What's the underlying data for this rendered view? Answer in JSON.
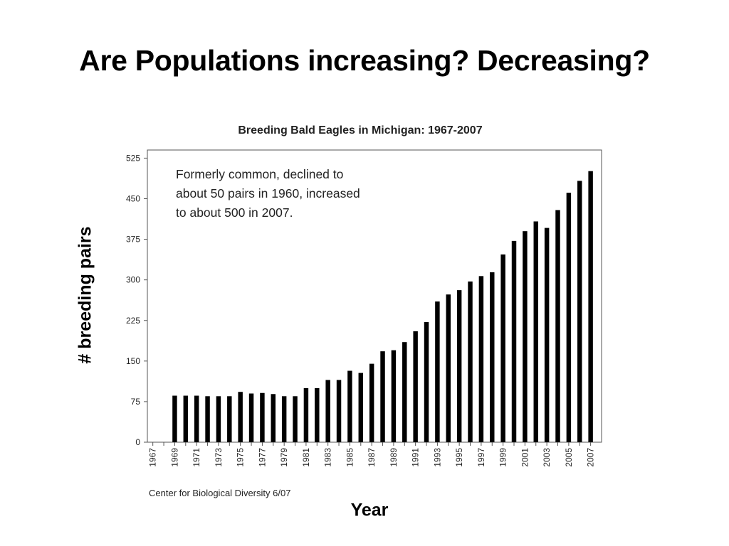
{
  "slide": {
    "title": "Are Populations increasing? Decreasing?",
    "y_label": "# breeding pairs",
    "x_label": "Year"
  },
  "chart_data": {
    "type": "bar",
    "title": "Breeding Bald Eagles in Michigan: 1967-2007",
    "annotation": "Formerly common, declined to\nabout 50 pairs in 1960, increased\nto about 500 in 2007.",
    "source": "Center for Biological Diversity 6/07",
    "xlabel": "Year",
    "ylabel": "# breeding pairs",
    "ylim": [
      0,
      540
    ],
    "yticks": [
      0,
      75,
      150,
      225,
      300,
      375,
      450,
      525
    ],
    "categories": [
      "1967",
      "1968",
      "1969",
      "1970",
      "1971",
      "1972",
      "1973",
      "1974",
      "1975",
      "1976",
      "1977",
      "1978",
      "1979",
      "1980",
      "1981",
      "1982",
      "1983",
      "1984",
      "1985",
      "1986",
      "1987",
      "1988",
      "1989",
      "1990",
      "1991",
      "1992",
      "1993",
      "1994",
      "1995",
      "1996",
      "1997",
      "1998",
      "1999",
      "2000",
      "2001",
      "2002",
      "2003",
      "2004",
      "2005",
      "2006",
      "2007"
    ],
    "xtick_labels": [
      "1967",
      "1969",
      "1971",
      "1973",
      "1975",
      "1977",
      "1979",
      "1981",
      "1983",
      "1985",
      "1987",
      "1989",
      "1991",
      "1993",
      "1995",
      "1997",
      "1999",
      "2001",
      "2003",
      "2005",
      "2007"
    ],
    "values": [
      0,
      0,
      86,
      86,
      86,
      85,
      85,
      85,
      93,
      90,
      91,
      89,
      85,
      85,
      100,
      100,
      115,
      115,
      132,
      128,
      145,
      168,
      170,
      185,
      205,
      222,
      260,
      273,
      281,
      297,
      307,
      314,
      347,
      372,
      390,
      408,
      396,
      429,
      461,
      483,
      501
    ],
    "bar_color": "#000000",
    "grid": false,
    "legend": "none"
  }
}
